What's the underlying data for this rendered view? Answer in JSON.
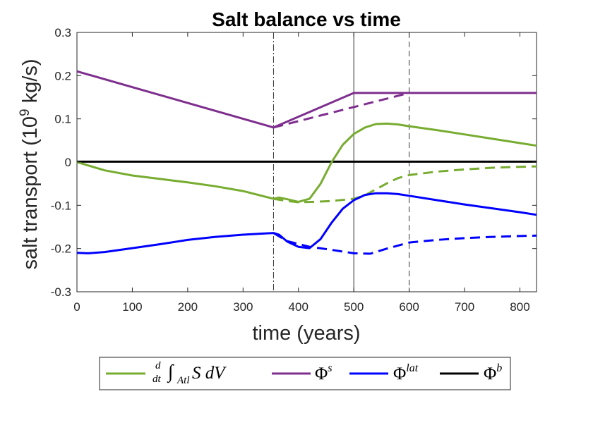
{
  "chart_data": {
    "type": "line",
    "title": "Salt balance vs time",
    "xlabel": "time (years)",
    "ylabel_main": "salt transport (10",
    "ylabel_exp": "9",
    "ylabel_tail": " kg/s)",
    "xlim": [
      0,
      830
    ],
    "ylim": [
      -0.3,
      0.3
    ],
    "xticks": [
      0,
      100,
      200,
      300,
      400,
      500,
      600,
      700,
      800
    ],
    "xtick_labels": [
      "0",
      "100",
      "200",
      "300",
      "400",
      "500",
      "600",
      "700",
      "800"
    ],
    "yticks": [
      -0.3,
      -0.2,
      -0.1,
      0,
      0.1,
      0.2,
      0.3
    ],
    "ytick_labels": [
      "-0.3",
      "-0.2",
      "-0.1",
      "0",
      "0.1",
      "0.2",
      "0.3"
    ],
    "vlines": [
      {
        "x": 355,
        "style": "dashdot"
      },
      {
        "x": 500,
        "style": "solid"
      },
      {
        "x": 600,
        "style": "dashed"
      }
    ],
    "legend_position": "bottom-outside",
    "series": [
      {
        "name": "d/dt ∫_Atl S dV",
        "color": "#77ac30",
        "style": "solid",
        "x": [
          0,
          50,
          100,
          150,
          200,
          250,
          300,
          355,
          365,
          380,
          400,
          420,
          440,
          460,
          480,
          500,
          520,
          540,
          560,
          580,
          600,
          650,
          700,
          750,
          800,
          830
        ],
        "y": [
          0,
          -0.019,
          -0.031,
          -0.039,
          -0.047,
          -0.056,
          -0.067,
          -0.085,
          -0.082,
          -0.086,
          -0.092,
          -0.085,
          -0.05,
          0,
          0.04,
          0.065,
          0.08,
          0.088,
          0.089,
          0.087,
          0.083,
          0.074,
          0.064,
          0.054,
          0.044,
          0.038
        ]
      },
      {
        "name": "d/dt ∫_Atl S dV (dashed)",
        "color": "#77ac30",
        "style": "dashed",
        "x": [
          355,
          380,
          400,
          430,
          460,
          500,
          520,
          540,
          560,
          580,
          600,
          650,
          700,
          750,
          800,
          830
        ],
        "y": [
          -0.085,
          -0.09,
          -0.093,
          -0.092,
          -0.09,
          -0.085,
          -0.077,
          -0.063,
          -0.049,
          -0.037,
          -0.03,
          -0.022,
          -0.017,
          -0.013,
          -0.011,
          -0.01
        ]
      },
      {
        "name": "Φ^s",
        "color": "#7e2f8e",
        "style": "solid",
        "x": [
          0,
          355,
          500,
          830
        ],
        "y": [
          0.21,
          0.08,
          0.16,
          0.16
        ]
      },
      {
        "name": "Φ^s (dashed)",
        "color": "#7e2f8e",
        "style": "dashed",
        "x": [
          355,
          600
        ],
        "y": [
          0.08,
          0.16
        ]
      },
      {
        "name": "Φ^lat",
        "color": "#0000ff",
        "style": "solid",
        "x": [
          0,
          20,
          50,
          100,
          150,
          200,
          250,
          300,
          355,
          365,
          380,
          400,
          420,
          440,
          460,
          480,
          500,
          520,
          540,
          560,
          580,
          600,
          650,
          700,
          750,
          800,
          830
        ],
        "y": [
          -0.21,
          -0.211,
          -0.208,
          -0.199,
          -0.19,
          -0.18,
          -0.173,
          -0.168,
          -0.164,
          -0.168,
          -0.184,
          -0.196,
          -0.199,
          -0.178,
          -0.14,
          -0.108,
          -0.088,
          -0.076,
          -0.072,
          -0.072,
          -0.074,
          -0.078,
          -0.088,
          -0.098,
          -0.107,
          -0.116,
          -0.122
        ]
      },
      {
        "name": "Φ^lat (dashed)",
        "color": "#0000ff",
        "style": "dashed",
        "x": [
          355,
          380,
          420,
          460,
          500,
          530,
          560,
          580,
          600,
          650,
          700,
          750,
          800,
          830
        ],
        "y": [
          -0.164,
          -0.183,
          -0.196,
          -0.203,
          -0.211,
          -0.212,
          -0.2,
          -0.193,
          -0.186,
          -0.18,
          -0.176,
          -0.173,
          -0.171,
          -0.17
        ]
      },
      {
        "name": "Φ^b",
        "color": "#000000",
        "style": "solid",
        "x": [
          0,
          830
        ],
        "y": [
          0.001,
          0.001
        ]
      }
    ],
    "legend": [
      {
        "color": "#77ac30",
        "text_pre": "d",
        "text_den": "dt",
        "text_int": "∫",
        "text_sub": "Atl",
        "text_post": " S dV"
      },
      {
        "color": "#7e2f8e",
        "text": "Φ",
        "sup": "s"
      },
      {
        "color": "#0000ff",
        "text": "Φ",
        "sup": "lat"
      },
      {
        "color": "#000000",
        "text": "Φ",
        "sup": "b"
      }
    ]
  }
}
